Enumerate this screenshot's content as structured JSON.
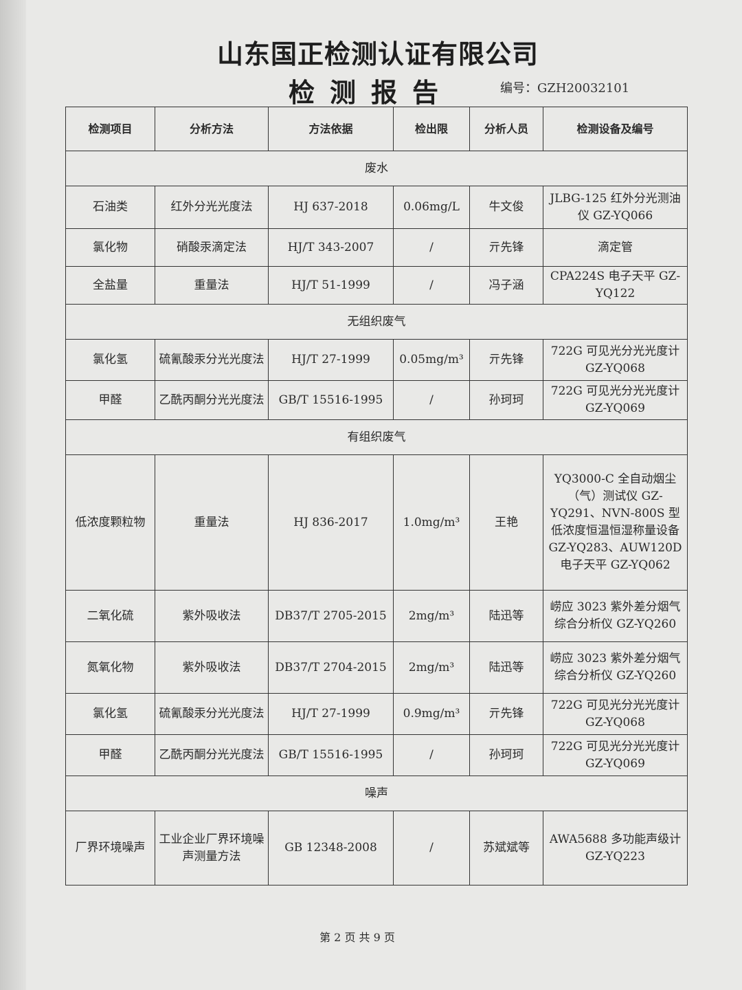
{
  "company": "山东国正检测认证有限公司",
  "title": "检测报告",
  "report_no": "编号：GZH20032101",
  "headers": [
    "检测项目",
    "分析方法",
    "方法依据",
    "检出限",
    "分析人员",
    "检测设备及编号"
  ],
  "rows": [
    {
      "section": "废水"
    },
    {
      "cells": [
        "石油类",
        "红外分光光度法",
        "HJ 637-2018",
        "0.06mg/L",
        "牛文俊",
        "JLBG-125 红外分光测油仪 GZ-YQ066"
      ]
    },
    {
      "cells": [
        "氯化物",
        "硝酸汞滴定法",
        "HJ/T 343-2007",
        "/",
        "亓先锋",
        "滴定管"
      ]
    },
    {
      "cells": [
        "全盐量",
        "重量法",
        "HJ/T 51-1999",
        "/",
        "冯子涵",
        "CPA224S 电子天平 GZ-YQ122"
      ]
    },
    {
      "section": "无组织废气"
    },
    {
      "cells": [
        "氯化氢",
        "硫氰酸汞分光光度法",
        "HJ/T 27-1999",
        "0.05mg/m³",
        "亓先锋",
        "722G 可见光分光光度计 GZ-YQ068"
      ]
    },
    {
      "cells": [
        "甲醛",
        "乙酰丙酮分光光度法",
        "GB/T 15516-1995",
        "/",
        "孙珂珂",
        "722G 可见光分光光度计 GZ-YQ069"
      ]
    },
    {
      "section": "有组织废气"
    },
    {
      "cells": [
        "低浓度颗粒物",
        "重量法",
        "HJ 836-2017",
        "1.0mg/m³",
        "王艳",
        "YQ3000-C 全自动烟尘（气）测试仪 GZ-YQ291、NVN-800S 型低浓度恒温恒湿称量设备 GZ-YQ283、AUW120D 电子天平 GZ-YQ062"
      ]
    },
    {
      "cells": [
        "二氧化硫",
        "紫外吸收法",
        "DB37/T 2705-2015",
        "2mg/m³",
        "陆迅等",
        "崂应 3023 紫外差分烟气综合分析仪 GZ-YQ260"
      ]
    },
    {
      "cells": [
        "氮氧化物",
        "紫外吸收法",
        "DB37/T 2704-2015",
        "2mg/m³",
        "陆迅等",
        "崂应 3023 紫外差分烟气综合分析仪 GZ-YQ260"
      ]
    },
    {
      "cells": [
        "氯化氢",
        "硫氰酸汞分光光度法",
        "HJ/T 27-1999",
        "0.9mg/m³",
        "亓先锋",
        "722G 可见光分光光度计 GZ-YQ068"
      ]
    },
    {
      "cells": [
        "甲醛",
        "乙酰丙酮分光光度法",
        "GB/T 15516-1995",
        "/",
        "孙珂珂",
        "722G 可见光分光光度计 GZ-YQ069"
      ]
    },
    {
      "section": "噪声"
    },
    {
      "cells": [
        "厂界环境噪声",
        "工业企业厂界环境噪声测量方法",
        "GB 12348-2008",
        "/",
        "苏斌斌等",
        "AWA5688 多功能声级计 GZ-YQ223"
      ]
    }
  ],
  "footer": "第 2 页 共 9 页"
}
